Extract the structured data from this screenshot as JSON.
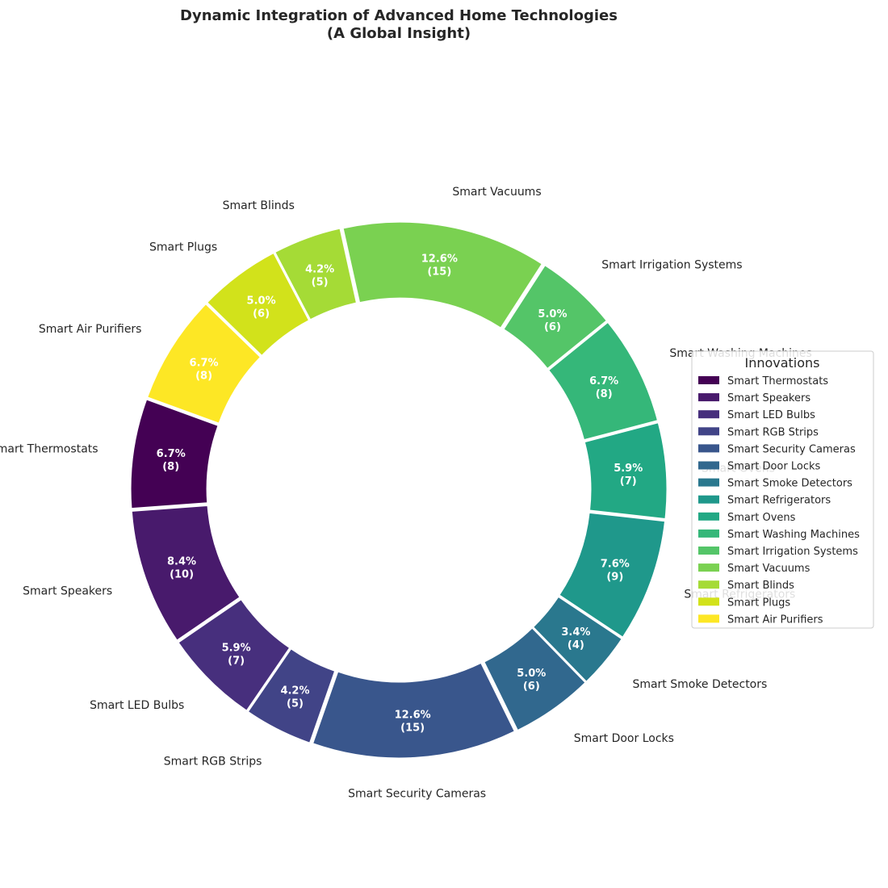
{
  "chart_data": {
    "type": "pie",
    "donut": true,
    "title_line1": "Dynamic Integration of Advanced Home Technologies",
    "title_line2": "(A Global Insight)",
    "categories": [
      "Smart Thermostats",
      "Smart Speakers",
      "Smart LED Bulbs",
      "Smart RGB Strips",
      "Smart Security Cameras",
      "Smart Door Locks",
      "Smart Smoke Detectors",
      "Smart Refrigerators",
      "Smart Ovens",
      "Smart Washing Machines",
      "Smart Irrigation Systems",
      "Smart Vacuums",
      "Smart Blinds",
      "Smart Plugs",
      "Smart Air Purifiers"
    ],
    "values": [
      8,
      10,
      7,
      5,
      15,
      6,
      4,
      9,
      7,
      8,
      6,
      15,
      5,
      6,
      8
    ],
    "percent_labels": [
      "6.7%",
      "8.4%",
      "5.9%",
      "4.2%",
      "12.6%",
      "5.0%",
      "3.4%",
      "7.6%",
      "5.9%",
      "6.7%",
      "5.0%",
      "12.6%",
      "4.2%",
      "5.0%",
      "6.7%"
    ],
    "value_labels": [
      "(8)",
      "(10)",
      "(7)",
      "(5)",
      "(15)",
      "(6)",
      "(4)",
      "(9)",
      "(7)",
      "(8)",
      "(6)",
      "(15)",
      "(5)",
      "(6)",
      "(8)"
    ],
    "colors": [
      "#440154",
      "#481a6c",
      "#472f7d",
      "#414487",
      "#39568c",
      "#31688e",
      "#2a788e",
      "#23888e",
      "#1f988b",
      "#22a884",
      "#35b779",
      "#54c568",
      "#7ad151",
      "#a5db36",
      "#d2e21b",
      "#fde725"
    ],
    "start_angle_deg": 160,
    "direction": "counterclockwise",
    "legend": {
      "title": "Innovations",
      "placement": "right"
    }
  }
}
